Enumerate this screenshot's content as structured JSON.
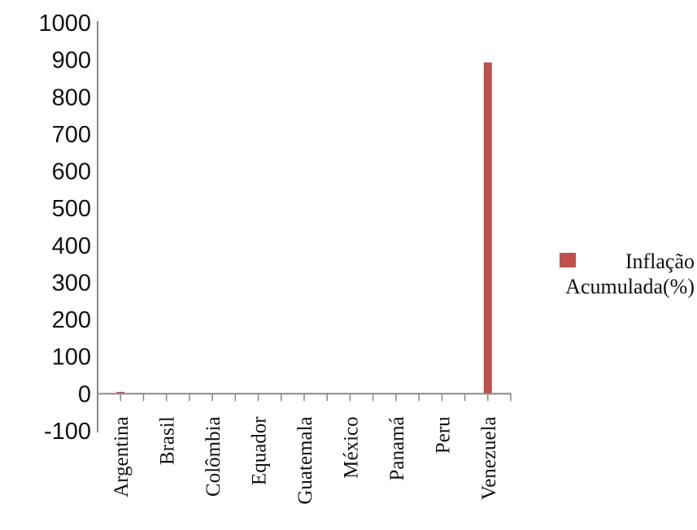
{
  "chart_data": {
    "type": "bar",
    "categories": [
      "Argentina",
      "Brasil",
      "Colômbia",
      "Equador",
      "Guatemala",
      "México",
      "Panamá",
      "Peru",
      "Venezuela"
    ],
    "series": [
      {
        "name": "Inflação Acumulada(%)",
        "values": [
          5,
          0,
          0,
          0,
          0,
          0,
          0,
          0,
          893
        ]
      }
    ],
    "yticks": [
      "1000",
      "900",
      "800",
      "700",
      "600",
      "500",
      "400",
      "300",
      "200",
      "100",
      "0",
      "-100"
    ],
    "ylim": [
      -100,
      1000
    ],
    "grid": false,
    "legend": {
      "position": "right",
      "line1": "Inflação",
      "line2": "Acumulada(%)"
    },
    "colors": {
      "bar": "#c0504d",
      "axis": "#888888"
    }
  }
}
